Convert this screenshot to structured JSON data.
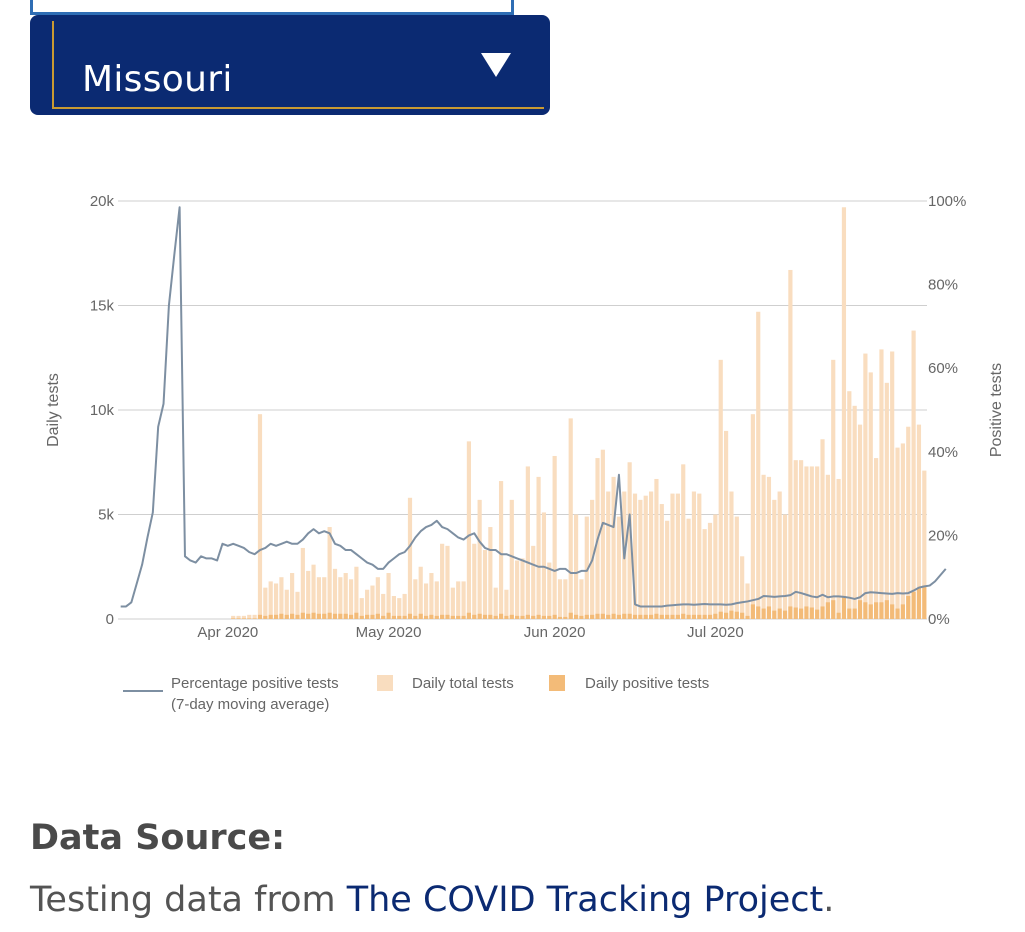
{
  "state_selector": {
    "selected": "Missouri"
  },
  "chart_data": {
    "type": "bar",
    "x_tick_labels": [
      "Apr 2020",
      "May 2020",
      "Jun 2020",
      "Jul 2020"
    ],
    "y_left_label": "Daily tests",
    "y_left_ticks": [
      "0",
      "5k",
      "10k",
      "15k",
      "20k"
    ],
    "y_left_lim": [
      0,
      20000
    ],
    "y_right_label": "Positive tests",
    "y_right_ticks": [
      "0%",
      "20%",
      "40%",
      "60%",
      "80%",
      "100%"
    ],
    "y_right_lim": [
      0,
      100
    ],
    "grid": true,
    "legend_position": "bottom",
    "colors": {
      "total": "#f9ddbf",
      "positive": "#f3bb78",
      "line": "#7d8fa2",
      "grid": "#cfcfcf",
      "axis_text": "#666666"
    },
    "start_date": "2020-03-12",
    "series": [
      {
        "name": "Daily total tests",
        "values": [
          0,
          0,
          0,
          0,
          0,
          0,
          0,
          0,
          0,
          0,
          0,
          0,
          0,
          0,
          0,
          0,
          0,
          0,
          0,
          0,
          0,
          150,
          150,
          150,
          200,
          200,
          9800,
          1500,
          1800,
          1700,
          2000,
          1400,
          2200,
          1300,
          3400,
          2300,
          2600,
          2000,
          2000,
          4400,
          2400,
          2000,
          2200,
          1900,
          2500,
          1000,
          1400,
          1600,
          2000,
          1200,
          2200,
          1100,
          1000,
          1200,
          5800,
          1900,
          2500,
          1700,
          2200,
          1800,
          3600,
          3500,
          1500,
          1800,
          1800,
          8500,
          3600,
          5700,
          3300,
          4400,
          1500,
          6600,
          1400,
          5700,
          2800,
          2900,
          7300,
          3500,
          6800,
          5100,
          2700,
          7800,
          1900,
          1900,
          9600,
          5000,
          1900,
          4900,
          5700,
          7700,
          8100,
          6100,
          6800,
          4900,
          6100,
          7500,
          6000,
          5700,
          5900,
          6100,
          6700,
          5500,
          4700,
          6000,
          6000,
          7400,
          4800,
          6100,
          6000,
          4300,
          4600,
          5000,
          12400,
          9000,
          6100,
          4900,
          3000,
          1700,
          9800,
          14700,
          6900,
          6800,
          5700,
          6100,
          5000,
          16700,
          7600,
          7600,
          7300,
          7300,
          7300,
          8600,
          6900,
          12400,
          6700,
          19700,
          10900,
          10200,
          9300,
          12700,
          11800,
          7700,
          12900,
          11300,
          12800,
          8200,
          8400,
          9200,
          13800,
          9300,
          7100
        ],
        "unit": "tests"
      },
      {
        "name": "Daily positive tests",
        "values": [
          0,
          0,
          0,
          0,
          0,
          0,
          0,
          0,
          0,
          0,
          0,
          0,
          0,
          0,
          0,
          0,
          0,
          0,
          0,
          0,
          0,
          30,
          30,
          30,
          30,
          30,
          200,
          150,
          200,
          200,
          250,
          200,
          250,
          200,
          300,
          250,
          300,
          250,
          250,
          300,
          250,
          250,
          250,
          200,
          300,
          150,
          200,
          200,
          250,
          150,
          300,
          150,
          150,
          150,
          250,
          150,
          250,
          150,
          200,
          150,
          200,
          200,
          150,
          150,
          150,
          300,
          200,
          250,
          200,
          200,
          150,
          250,
          150,
          200,
          150,
          150,
          200,
          150,
          200,
          150,
          150,
          200,
          100,
          100,
          300,
          200,
          150,
          200,
          200,
          250,
          250,
          200,
          250,
          200,
          250,
          250,
          200,
          200,
          200,
          200,
          250,
          200,
          200,
          200,
          200,
          250,
          200,
          200,
          200,
          200,
          200,
          250,
          350,
          300,
          400,
          350,
          300,
          150,
          700,
          600,
          500,
          600,
          400,
          500,
          400,
          600,
          550,
          500,
          600,
          550,
          450,
          600,
          800,
          900,
          300,
          1100,
          500,
          500,
          900,
          800,
          700,
          800,
          800,
          900,
          700,
          500,
          700,
          1100,
          1300,
          1500,
          1600,
          1500,
          1300
        ],
        "unit": "tests"
      },
      {
        "name": "Percentage positive tests (7-day moving average)",
        "values": [
          3,
          3,
          4,
          8.5,
          13,
          19.5,
          25.5,
          46,
          51.5,
          75,
          87,
          98.5,
          15,
          14,
          13.5,
          15,
          14.5,
          14.5,
          14,
          18,
          17.5,
          18,
          17.5,
          17,
          16,
          15.5,
          16.5,
          17,
          18,
          17.5,
          18,
          18.5,
          18,
          18,
          19,
          20.5,
          21.5,
          20.5,
          21,
          20.5,
          18,
          17.5,
          16.5,
          16.5,
          15.5,
          14.5,
          13.5,
          13,
          12,
          12,
          13.5,
          14.5,
          15.5,
          16,
          17.5,
          19.5,
          21,
          22,
          22.5,
          23.5,
          22,
          21.5,
          20.5,
          19.5,
          19,
          20,
          20.5,
          18.5,
          17,
          16.5,
          16.5,
          15.5,
          15.5,
          15,
          14.5,
          14,
          13.5,
          13,
          12.5,
          12.5,
          12,
          11.5,
          12,
          12,
          11,
          11,
          11.5,
          11.5,
          14,
          19,
          23,
          22.5,
          22,
          34.5,
          14.5,
          25,
          3.5,
          3,
          3,
          3,
          3,
          3,
          3.2,
          3.3,
          3.4,
          3.5,
          3.5,
          3.4,
          3.5,
          3.6,
          3.5,
          3.5,
          3.5,
          3.4,
          3.5,
          3.8,
          4,
          4.2,
          4.5,
          4.8,
          5.5,
          5.4,
          5.3,
          5.4,
          5.5,
          5.7,
          6.5,
          6.2,
          5.8,
          5.4,
          5.2,
          5.8,
          5.2,
          5.4,
          5.4,
          5.3,
          5.1,
          4.8,
          5.2,
          6.2,
          6.4,
          6.3,
          6.2,
          6.1,
          6.0,
          6.2,
          6.1,
          6.2,
          6.8,
          7.5,
          7.8,
          8.0,
          9.0,
          10.5,
          12.0
        ],
        "unit": "percent"
      }
    ],
    "legend": {
      "line_label_1": "Percentage positive tests",
      "line_label_2": "(7-day moving average)",
      "total_label": "Daily total tests",
      "positive_label": "Daily positive tests"
    }
  },
  "footer": {
    "source_heading": "Data Source:",
    "source_prefix": "Testing data from ",
    "source_link": "The COVID Tracking Project",
    "source_suffix": "."
  }
}
